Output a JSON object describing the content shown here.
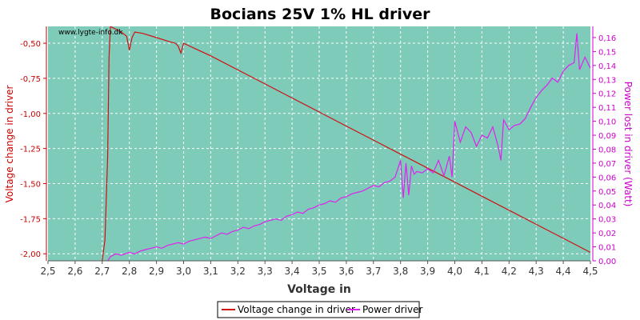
{
  "chart_data": {
    "type": "line",
    "title": "Bocians 25V 1% HL driver",
    "watermark": "www.lygte-info.dk",
    "xlabel": "Voltage in",
    "ylabel_left": "Voltage change in driver",
    "ylabel_right": "Power lost in driver (Watt)",
    "xlim": [
      2.5,
      4.5
    ],
    "ylim_left": [
      -2.05,
      -0.38
    ],
    "ylim_right": [
      0.0,
      0.168
    ],
    "x_ticks": [
      2.5,
      2.6,
      2.7,
      2.8,
      2.9,
      3.0,
      3.1,
      3.2,
      3.3,
      3.4,
      3.5,
      3.6,
      3.7,
      3.8,
      3.9,
      4.0,
      4.1,
      4.2,
      4.3,
      4.4,
      4.5
    ],
    "x_tick_labels": [
      "2,5",
      "2,6",
      "2,7",
      "2,8",
      "2,9",
      "3,0",
      "3,1",
      "3,2",
      "3,3",
      "3,4",
      "3,5",
      "3,6",
      "3,7",
      "3,8",
      "3,9",
      "4,0",
      "4,1",
      "4,2",
      "4,3",
      "4,4",
      "4,5"
    ],
    "y_left_ticks": [
      -2.0,
      -1.75,
      -1.5,
      -1.25,
      -1.0,
      -0.75,
      -0.5
    ],
    "y_left_tick_labels": [
      "-2,00",
      "-1,75",
      "-1,50",
      "-1,25",
      "-1,00",
      "-0,75",
      "-0,50"
    ],
    "y_right_ticks": [
      0.0,
      0.01,
      0.02,
      0.03,
      0.04,
      0.05,
      0.06,
      0.07,
      0.08,
      0.09,
      0.1,
      0.11,
      0.12,
      0.13,
      0.14,
      0.15,
      0.16
    ],
    "y_right_tick_labels": [
      "0,00",
      "0,01",
      "0,02",
      "0,03",
      "0,04",
      "0,05",
      "0,06",
      "0,07",
      "0,08",
      "0,09",
      "0,10",
      "0,11",
      "0,12",
      "0,13",
      "0,14",
      "0,15",
      "0,16"
    ],
    "grid": true,
    "legend_position": "bottom",
    "colors": {
      "plot_bg": "#7fcbb9",
      "grid": "#ffffff",
      "left_axis": "#cc0000",
      "right_axis": "#cc00cc",
      "series_voltage": "#cc1111",
      "series_power": "#dd22ee"
    },
    "series": [
      {
        "name": "Voltage change in driver",
        "axis": "left",
        "x": [
          2.7,
          2.71,
          2.72,
          2.725,
          2.73,
          2.74,
          2.75,
          2.77,
          2.79,
          2.8,
          2.81,
          2.82,
          2.85,
          2.9,
          2.95,
          2.97,
          2.98,
          2.99,
          3.0,
          3.1,
          3.2,
          3.3,
          3.4,
          3.5,
          3.6,
          3.7,
          3.8,
          3.9,
          4.0,
          4.1,
          4.2,
          4.3,
          4.4,
          4.5
        ],
        "y": [
          -2.05,
          -1.9,
          -1.3,
          -0.6,
          -0.38,
          -0.39,
          -0.4,
          -0.42,
          -0.45,
          -0.55,
          -0.46,
          -0.42,
          -0.43,
          -0.46,
          -0.49,
          -0.5,
          -0.52,
          -0.57,
          -0.5,
          -0.59,
          -0.69,
          -0.79,
          -0.89,
          -0.99,
          -1.09,
          -1.19,
          -1.29,
          -1.39,
          -1.49,
          -1.59,
          -1.69,
          -1.79,
          -1.89,
          -1.99
        ]
      },
      {
        "name": "Power driver",
        "axis": "right",
        "x": [
          2.72,
          2.73,
          2.75,
          2.77,
          2.8,
          2.82,
          2.84,
          2.86,
          2.88,
          2.9,
          2.92,
          2.94,
          2.96,
          2.98,
          3.0,
          3.02,
          3.04,
          3.06,
          3.08,
          3.1,
          3.12,
          3.14,
          3.16,
          3.18,
          3.2,
          3.22,
          3.24,
          3.26,
          3.28,
          3.3,
          3.32,
          3.34,
          3.36,
          3.38,
          3.4,
          3.42,
          3.44,
          3.46,
          3.48,
          3.5,
          3.52,
          3.54,
          3.56,
          3.58,
          3.6,
          3.62,
          3.64,
          3.66,
          3.68,
          3.7,
          3.72,
          3.74,
          3.76,
          3.78,
          3.8,
          3.81,
          3.82,
          3.83,
          3.84,
          3.85,
          3.86,
          3.88,
          3.9,
          3.92,
          3.94,
          3.96,
          3.98,
          3.99,
          4.0,
          4.02,
          4.04,
          4.06,
          4.08,
          4.1,
          4.12,
          4.14,
          4.16,
          4.17,
          4.18,
          4.2,
          4.22,
          4.24,
          4.26,
          4.28,
          4.3,
          4.32,
          4.34,
          4.36,
          4.38,
          4.4,
          4.42,
          4.44,
          4.45,
          4.46,
          4.48,
          4.5
        ],
        "y": [
          0.0,
          0.003,
          0.005,
          0.004,
          0.006,
          0.005,
          0.007,
          0.008,
          0.009,
          0.01,
          0.009,
          0.011,
          0.012,
          0.013,
          0.012,
          0.014,
          0.015,
          0.016,
          0.017,
          0.016,
          0.018,
          0.02,
          0.019,
          0.021,
          0.022,
          0.024,
          0.023,
          0.025,
          0.026,
          0.028,
          0.029,
          0.03,
          0.029,
          0.032,
          0.033,
          0.035,
          0.034,
          0.037,
          0.038,
          0.04,
          0.041,
          0.043,
          0.042,
          0.045,
          0.046,
          0.048,
          0.049,
          0.05,
          0.052,
          0.054,
          0.053,
          0.056,
          0.057,
          0.06,
          0.072,
          0.045,
          0.07,
          0.047,
          0.068,
          0.062,
          0.064,
          0.063,
          0.066,
          0.063,
          0.072,
          0.061,
          0.075,
          0.06,
          0.1,
          0.085,
          0.096,
          0.092,
          0.082,
          0.09,
          0.088,
          0.096,
          0.082,
          0.072,
          0.101,
          0.094,
          0.097,
          0.098,
          0.102,
          0.11,
          0.117,
          0.122,
          0.126,
          0.131,
          0.128,
          0.136,
          0.14,
          0.142,
          0.163,
          0.137,
          0.146,
          0.138
        ]
      }
    ]
  }
}
